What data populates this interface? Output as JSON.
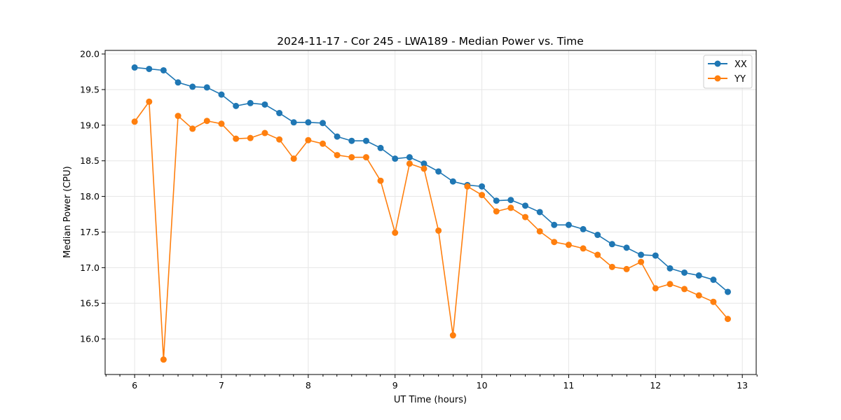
{
  "chart_data": {
    "type": "line",
    "title": "2024-11-17 - Cor 245 - LWA189 - Median Power vs. Time",
    "xlabel": "UT Time (hours)",
    "ylabel": "Median Power (CPU)",
    "xlim": [
      5.66,
      13.16
    ],
    "ylim": [
      15.5,
      20.05
    ],
    "xticks": [
      6,
      7,
      8,
      9,
      10,
      11,
      12,
      13
    ],
    "xtick_labels": [
      "6",
      "7",
      "8",
      "9",
      "10",
      "11",
      "12",
      "13"
    ],
    "xminor": [
      5.67,
      5.83,
      6.17,
      6.33,
      6.5,
      6.67,
      6.83,
      7.17,
      7.33,
      7.5,
      7.67,
      7.83,
      8.17,
      8.33,
      8.5,
      8.67,
      8.83,
      9.17,
      9.33,
      9.5,
      9.67,
      9.83,
      10.17,
      10.33,
      10.5,
      10.67,
      10.83,
      11.17,
      11.33,
      11.5,
      11.67,
      11.83,
      12.17,
      12.33,
      12.5,
      12.67,
      12.83,
      13.17
    ],
    "yticks": [
      16.0,
      16.5,
      17.0,
      17.5,
      18.0,
      18.5,
      19.0,
      19.5,
      20.0
    ],
    "ytick_labels": [
      "16.0",
      "16.5",
      "17.0",
      "17.5",
      "18.0",
      "18.5",
      "19.0",
      "19.5",
      "20.0"
    ],
    "grid": true,
    "legend_position": "top-right",
    "x": [
      6.0,
      6.167,
      6.333,
      6.5,
      6.667,
      6.833,
      7.0,
      7.167,
      7.333,
      7.5,
      7.667,
      7.833,
      8.0,
      8.167,
      8.333,
      8.5,
      8.667,
      8.833,
      9.0,
      9.167,
      9.333,
      9.5,
      9.667,
      9.833,
      10.0,
      10.167,
      10.333,
      10.5,
      10.667,
      10.833,
      11.0,
      11.167,
      11.333,
      11.5,
      11.667,
      11.833,
      12.0,
      12.167,
      12.333,
      12.5,
      12.667,
      12.833
    ],
    "series": [
      {
        "name": "XX",
        "color": "#1f77b4",
        "values": [
          19.81,
          19.79,
          19.77,
          19.6,
          19.54,
          19.53,
          19.43,
          19.27,
          19.31,
          19.29,
          19.17,
          19.04,
          19.04,
          19.03,
          18.84,
          18.78,
          18.78,
          18.68,
          18.53,
          18.55,
          18.46,
          18.35,
          18.21,
          18.16,
          18.14,
          17.94,
          17.95,
          17.87,
          17.78,
          17.6,
          17.6,
          17.54,
          17.46,
          17.33,
          17.28,
          17.18,
          17.17,
          16.99,
          16.93,
          16.89,
          16.83,
          16.66
        ]
      },
      {
        "name": "YY",
        "color": "#ff7f0e",
        "values": [
          19.05,
          19.33,
          15.71,
          19.13,
          18.95,
          19.06,
          19.02,
          18.81,
          18.82,
          18.89,
          18.8,
          18.53,
          18.79,
          18.74,
          18.58,
          18.55,
          18.55,
          18.22,
          17.49,
          18.46,
          18.39,
          17.52,
          16.05,
          18.14,
          18.02,
          17.79,
          17.84,
          17.71,
          17.51,
          17.36,
          17.32,
          17.27,
          17.18,
          17.01,
          16.98,
          17.08,
          16.71,
          16.77,
          16.7,
          16.61,
          16.52,
          16.28
        ]
      }
    ]
  }
}
